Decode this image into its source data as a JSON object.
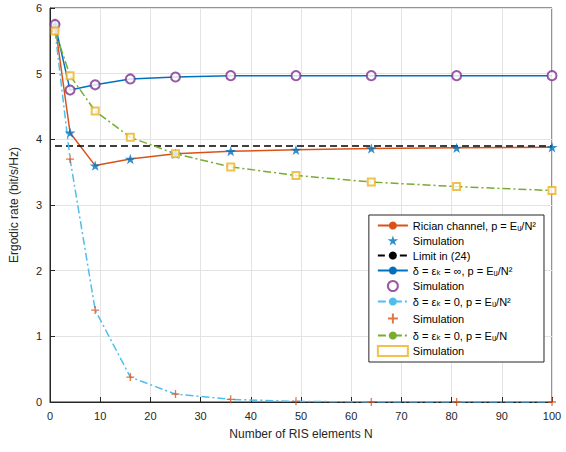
{
  "chart_data": {
    "type": "line",
    "xlabel": "Number of RIS elements N",
    "ylabel": "Ergodic rate (bit/s/Hz)",
    "xlim": [
      0,
      100
    ],
    "xticks": [
      0,
      10,
      20,
      30,
      40,
      50,
      60,
      70,
      80,
      90,
      100
    ],
    "ylim": [
      0,
      6
    ],
    "yticks": [
      0,
      1,
      2,
      3,
      4,
      5,
      6
    ],
    "grid": true,
    "legend": "lower right",
    "series": [
      {
        "name": "Rician channel, p = Eᵤ/N²",
        "type": "line",
        "color": "#D95319",
        "marker": "none",
        "line_style": "solid",
        "x": [
          1,
          4,
          9,
          16,
          25,
          36,
          49,
          64,
          81,
          100
        ],
        "values": [
          5.75,
          4.1,
          3.6,
          3.7,
          3.78,
          3.82,
          3.84,
          3.86,
          3.87,
          3.88
        ]
      },
      {
        "name": "Simulation",
        "type": "scatter",
        "color": "#0072BD",
        "marker": "star",
        "line_style": "none",
        "x": [
          1,
          4,
          9,
          16,
          25,
          36,
          49,
          64,
          81,
          100
        ],
        "values": [
          5.75,
          4.1,
          3.6,
          3.7,
          3.78,
          3.82,
          3.84,
          3.86,
          3.87,
          3.88
        ]
      },
      {
        "name": "Limit in (24)",
        "type": "line",
        "color": "#000000",
        "marker": "none",
        "line_style": "dashed",
        "x": [
          1,
          100
        ],
        "values": [
          3.9,
          3.9
        ]
      },
      {
        "name": "δ = εₖ = ∞, p = Eᵤ/N²",
        "type": "line",
        "color": "#0072BD",
        "marker": "none",
        "line_style": "solid",
        "x": [
          1,
          4,
          9,
          16,
          25,
          36,
          49,
          64,
          81,
          100
        ],
        "values": [
          5.75,
          4.75,
          4.83,
          4.92,
          4.95,
          4.97,
          4.97,
          4.97,
          4.97,
          4.97
        ]
      },
      {
        "name": "Simulation",
        "type": "scatter",
        "color": "#7E2F8E",
        "marker": "circle",
        "line_style": "none",
        "x": [
          1,
          4,
          9,
          16,
          25,
          36,
          49,
          64,
          81,
          100
        ],
        "values": [
          5.75,
          4.75,
          4.83,
          4.92,
          4.95,
          4.97,
          4.97,
          4.97,
          4.97,
          4.97
        ]
      },
      {
        "name": "δ = εₖ = 0, p = Eᵤ/N²",
        "type": "line",
        "color": "#4DBEEE",
        "marker": "none",
        "line_style": "dashdot",
        "x": [
          1,
          4,
          9,
          16,
          25,
          36,
          49,
          64,
          81,
          100
        ],
        "values": [
          5.65,
          3.7,
          1.4,
          0.38,
          0.12,
          0.04,
          0.01,
          0.0,
          0.0,
          0.0
        ]
      },
      {
        "name": "Simulation",
        "type": "scatter",
        "color": "#D95319",
        "marker": "plus",
        "line_style": "none",
        "x": [
          1,
          4,
          9,
          16,
          25,
          36,
          49,
          64,
          81,
          100
        ],
        "values": [
          5.65,
          3.7,
          1.4,
          0.38,
          0.12,
          0.04,
          0.01,
          0.0,
          0.0,
          0.0
        ]
      },
      {
        "name": "δ = εₖ = 0, p = Eᵤ/N",
        "type": "line",
        "color": "#77AC30",
        "marker": "none",
        "line_style": "dashdot",
        "x": [
          1,
          4,
          9,
          16,
          25,
          36,
          49,
          64,
          81,
          100
        ],
        "values": [
          5.65,
          4.97,
          4.43,
          4.03,
          3.78,
          3.58,
          3.45,
          3.35,
          3.28,
          3.22
        ]
      },
      {
        "name": "Simulation",
        "type": "scatter",
        "color": "#EDB120",
        "marker": "square",
        "line_style": "none",
        "x": [
          1,
          4,
          9,
          16,
          25,
          36,
          49,
          64,
          81,
          100
        ],
        "values": [
          5.65,
          4.97,
          4.43,
          4.03,
          3.78,
          3.58,
          3.45,
          3.35,
          3.28,
          3.22
        ]
      }
    ]
  }
}
